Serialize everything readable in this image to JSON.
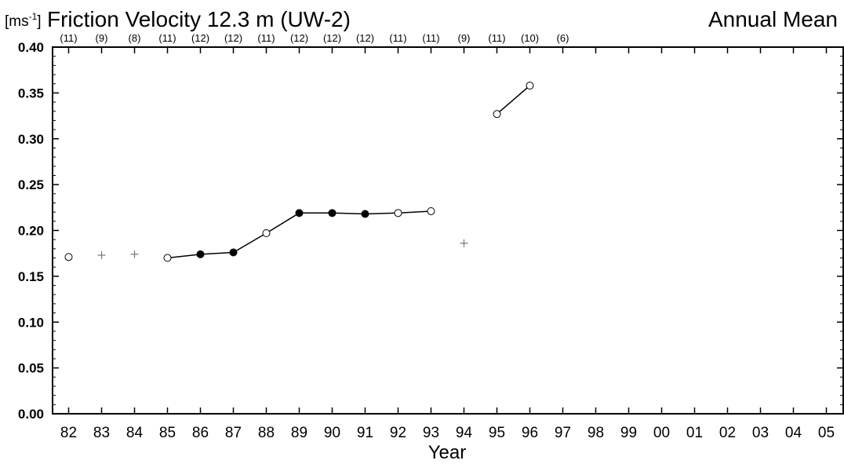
{
  "chart_data": {
    "type": "line",
    "unit_prefix": "[ms",
    "unit_exponent": "-1",
    "unit_suffix": "]",
    "title": "Friction Velocity 12.3 m (UW-2)",
    "subtitle_right": "Annual Mean",
    "xlabel": "Year",
    "ylabel": "",
    "ylim": [
      0,
      0.4
    ],
    "yticks": [
      "0.00",
      "0.05",
      "0.10",
      "0.15",
      "0.20",
      "0.25",
      "0.30",
      "0.35",
      "0.40"
    ],
    "categories": [
      "82",
      "83",
      "84",
      "85",
      "86",
      "87",
      "88",
      "89",
      "90",
      "91",
      "92",
      "93",
      "94",
      "95",
      "96",
      "97",
      "98",
      "99",
      "00",
      "01",
      "02",
      "03",
      "04",
      "05"
    ],
    "sample_counts": [
      "(11)",
      "(9)",
      "(8)",
      "(11)",
      "(12)",
      "(12)",
      "(11)",
      "(12)",
      "(12)",
      "(12)",
      "(11)",
      "(11)",
      "(9)",
      "(11)",
      "(10)",
      "(6)"
    ],
    "points": [
      {
        "year": "82",
        "value": 0.171,
        "marker": "open"
      },
      {
        "year": "83",
        "value": 0.173,
        "marker": "plus"
      },
      {
        "year": "84",
        "value": 0.174,
        "marker": "plus"
      },
      {
        "year": "85",
        "value": 0.17,
        "marker": "open"
      },
      {
        "year": "86",
        "value": 0.174,
        "marker": "filled"
      },
      {
        "year": "87",
        "value": 0.176,
        "marker": "filled"
      },
      {
        "year": "88",
        "value": 0.197,
        "marker": "open"
      },
      {
        "year": "89",
        "value": 0.219,
        "marker": "filled"
      },
      {
        "year": "90",
        "value": 0.219,
        "marker": "filled"
      },
      {
        "year": "91",
        "value": 0.218,
        "marker": "filled"
      },
      {
        "year": "92",
        "value": 0.219,
        "marker": "open"
      },
      {
        "year": "93",
        "value": 0.221,
        "marker": "open"
      },
      {
        "year": "94",
        "value": 0.186,
        "marker": "plus"
      },
      {
        "year": "95",
        "value": 0.327,
        "marker": "open"
      },
      {
        "year": "96",
        "value": 0.358,
        "marker": "open"
      }
    ],
    "segments": [
      [
        "85",
        "86",
        "87",
        "88",
        "89",
        "90",
        "91",
        "92",
        "93"
      ],
      [
        "95",
        "96"
      ]
    ],
    "grid": false,
    "legend": "none",
    "colors": {
      "line": "#000000",
      "plus": "#777777",
      "axis": "#000000"
    }
  }
}
